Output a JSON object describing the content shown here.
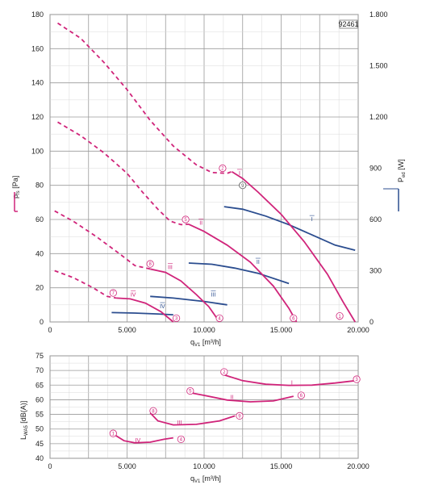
{
  "figure_id": "92461",
  "colors": {
    "pressure": "#d0247a",
    "power": "#2b4d8f",
    "grid_major": "#9a9a9a",
    "grid_minor": "#d9d9d9"
  },
  "chart_data": [
    {
      "type": "line",
      "name": "pressure-power",
      "xlabel": "q",
      "xlabel_sub": "V1",
      "xlabel_unit": "[m³/h]",
      "xlim": [
        0,
        20000
      ],
      "xticks": [
        {
          "v": 0,
          "label": "0"
        },
        {
          "v": 5000,
          "label": "5.000"
        },
        {
          "v": 10000,
          "label": "10.000"
        },
        {
          "v": 15000,
          "label": "15.000"
        },
        {
          "v": 20000,
          "label": "20.000"
        }
      ],
      "ylabel": "p",
      "ylabel_sub": "fs",
      "ylabel_unit": "[Pa]",
      "ylim": [
        0,
        180
      ],
      "yticks": [
        0,
        20,
        40,
        60,
        80,
        100,
        120,
        140,
        160,
        180
      ],
      "y2label": "P",
      "y2label_sub": "ed",
      "y2label_unit": "[W]",
      "y2lim": [
        0,
        1800
      ],
      "y2ticks": [
        {
          "v": 0,
          "label": "0"
        },
        {
          "v": 300,
          "label": "300"
        },
        {
          "v": 600,
          "label": "600"
        },
        {
          "v": 900,
          "label": "900"
        },
        {
          "v": 1200,
          "label": "1.200"
        },
        {
          "v": 1500,
          "label": "1.500"
        },
        {
          "v": 1800,
          "label": "1.800"
        }
      ],
      "pressure_series": [
        {
          "name": "I",
          "dashed": [
            [
              500,
              175
            ],
            [
              2000,
              166
            ],
            [
              3500,
              152
            ],
            [
              5000,
              136
            ],
            [
              6500,
              118
            ],
            [
              8000,
              103
            ],
            [
              9500,
              92
            ],
            [
              10500,
              87.5
            ],
            [
              11500,
              87
            ],
            [
              11800,
              88
            ]
          ],
          "solid": [
            [
              11800,
              88
            ],
            [
              12500,
              84
            ],
            [
              13500,
              76
            ],
            [
              15000,
              63
            ],
            [
              16500,
              47
            ],
            [
              18000,
              28
            ],
            [
              19000,
              12
            ],
            [
              19800,
              0
            ]
          ]
        },
        {
          "name": "II",
          "dashed": [
            [
              500,
              117
            ],
            [
              2000,
              109
            ],
            [
              3500,
              99
            ],
            [
              5000,
              87
            ],
            [
              6000,
              76
            ],
            [
              7000,
              66
            ],
            [
              7800,
              59
            ],
            [
              8500,
              57
            ],
            [
              9000,
              57.2
            ]
          ],
          "solid": [
            [
              9000,
              57.2
            ],
            [
              10000,
              53
            ],
            [
              11500,
              45
            ],
            [
              13000,
              35
            ],
            [
              14500,
              21
            ],
            [
              15500,
              8
            ],
            [
              16000,
              0
            ]
          ]
        },
        {
          "name": "III",
          "dashed": [
            [
              300,
              65
            ],
            [
              1500,
              59
            ],
            [
              3000,
              50
            ],
            [
              4500,
              40
            ],
            [
              5500,
              33
            ],
            [
              6500,
              31
            ]
          ],
          "solid": [
            [
              6500,
              31
            ],
            [
              7500,
              29
            ],
            [
              8500,
              24
            ],
            [
              9500,
              16
            ],
            [
              10300,
              9
            ],
            [
              11000,
              0
            ]
          ]
        },
        {
          "name": "IV",
          "dashed": [
            [
              300,
              30
            ],
            [
              1500,
              26
            ],
            [
              2800,
              20
            ],
            [
              3700,
              15
            ],
            [
              4300,
              14
            ]
          ],
          "solid": [
            [
              4300,
              14
            ],
            [
              5200,
              13.5
            ],
            [
              6200,
              11
            ],
            [
              7200,
              6
            ],
            [
              8000,
              0
            ]
          ]
        }
      ],
      "power_series": [
        {
          "name": "I",
          "points": [
            [
              11300,
              675
            ],
            [
              12500,
              660
            ],
            [
              14000,
              620
            ],
            [
              15500,
              570
            ],
            [
              17000,
              510
            ],
            [
              18500,
              450
            ],
            [
              19800,
              420
            ]
          ]
        },
        {
          "name": "II",
          "points": [
            [
              9000,
              345
            ],
            [
              10500,
              338
            ],
            [
              12000,
              315
            ],
            [
              13500,
              285
            ],
            [
              15500,
              225
            ]
          ]
        },
        {
          "name": "III",
          "points": [
            [
              6500,
              150
            ],
            [
              8000,
              140
            ],
            [
              10000,
              120
            ],
            [
              11500,
              100
            ]
          ]
        },
        {
          "name": "IV",
          "points": [
            [
              4000,
              55
            ],
            [
              5500,
              52
            ],
            [
              7000,
              47
            ],
            [
              8000,
              42
            ]
          ]
        }
      ],
      "curve_labels": [
        {
          "text": "I",
          "series": "pressure",
          "x": 12300,
          "y": 86
        },
        {
          "text": "II",
          "series": "pressure",
          "x": 9800,
          "y": 57
        },
        {
          "text": "III",
          "series": "pressure",
          "x": 7800,
          "y": 31
        },
        {
          "text": "IV",
          "series": "pressure",
          "x": 5400,
          "y": 15
        },
        {
          "text": "I",
          "series": "power",
          "x": 17000,
          "y": 590
        },
        {
          "text": "II",
          "series": "power",
          "x": 13500,
          "y": 340
        },
        {
          "text": "III",
          "series": "power",
          "x": 10600,
          "y": 150
        },
        {
          "text": "IV",
          "series": "power",
          "x": 7300,
          "y": 80
        }
      ],
      "markers": [
        {
          "text": "1",
          "x": 18800,
          "y": 3.5
        },
        {
          "text": "2",
          "x": 11200,
          "y": 90
        },
        {
          "text": "3",
          "x": 8200,
          "y": 2.2
        },
        {
          "text": "4",
          "x": 11000,
          "y": 2.2
        },
        {
          "text": "5",
          "x": 8800,
          "y": 60
        },
        {
          "text": "6",
          "x": 15800,
          "y": 2.2
        },
        {
          "text": "7",
          "x": 4100,
          "y": 17
        },
        {
          "text": "8",
          "x": 6500,
          "y": 34
        },
        {
          "text": "9",
          "x": 12500,
          "y": 80,
          "style": "grey"
        }
      ]
    },
    {
      "type": "line",
      "name": "sound-level",
      "xlabel": "q",
      "xlabel_sub": "V1",
      "xlabel_unit": "[m³/h]",
      "xlim": [
        0,
        20000
      ],
      "xticks": [
        {
          "v": 0,
          "label": "0"
        },
        {
          "v": 5000,
          "label": "5.000"
        },
        {
          "v": 10000,
          "label": "10.000"
        },
        {
          "v": 15000,
          "label": "15.000"
        },
        {
          "v": 20000,
          "label": "20.000"
        }
      ],
      "ylabel": "L",
      "ylabel_sub": "WA5",
      "ylabel_unit": "[dB(A)]",
      "ylim": [
        40,
        75
      ],
      "yticks": [
        40,
        45,
        50,
        55,
        60,
        65,
        70,
        75
      ],
      "series": [
        {
          "name": "I",
          "points": [
            [
              11300,
              68.5
            ],
            [
              12500,
              66.5
            ],
            [
              14000,
              65.3
            ],
            [
              15500,
              64.9
            ],
            [
              17000,
              65
            ],
            [
              18500,
              65.7
            ],
            [
              19800,
              66.5
            ]
          ]
        },
        {
          "name": "II",
          "points": [
            [
              9000,
              62.5
            ],
            [
              10000,
              61.5
            ],
            [
              11500,
              59.9
            ],
            [
              13000,
              59.3
            ],
            [
              14500,
              59.6
            ],
            [
              15800,
              61.2
            ]
          ]
        },
        {
          "name": "III",
          "points": [
            [
              6500,
              55.5
            ],
            [
              7000,
              52.8
            ],
            [
              8000,
              51.4
            ],
            [
              9500,
              51.6
            ],
            [
              11000,
              52.8
            ],
            [
              12000,
              54.5
            ]
          ]
        },
        {
          "name": "IV",
          "points": [
            [
              4200,
              48
            ],
            [
              4800,
              46
            ],
            [
              5500,
              45.3
            ],
            [
              6500,
              45.5
            ],
            [
              7400,
              46.5
            ],
            [
              8000,
              47
            ]
          ]
        }
      ],
      "curve_labels": [
        {
          "text": "I",
          "x": 15700,
          "y": 65
        },
        {
          "text": "II",
          "x": 11800,
          "y": 60
        },
        {
          "text": "III",
          "x": 8400,
          "y": 51.3
        },
        {
          "text": "IV",
          "x": 5700,
          "y": 45.3
        }
      ],
      "markers": [
        {
          "text": "1",
          "x": 4100,
          "y": 48.5
        },
        {
          "text": "2",
          "x": 11300,
          "y": 69.5
        },
        {
          "text": "3",
          "x": 19900,
          "y": 67
        },
        {
          "text": "4",
          "x": 8500,
          "y": 46.5
        },
        {
          "text": "5",
          "x": 9100,
          "y": 63
        },
        {
          "text": "6",
          "x": 16300,
          "y": 61.5
        },
        {
          "text": "8",
          "x": 6700,
          "y": 56.2
        },
        {
          "text": "9",
          "x": 12300,
          "y": 54.5
        }
      ]
    }
  ]
}
